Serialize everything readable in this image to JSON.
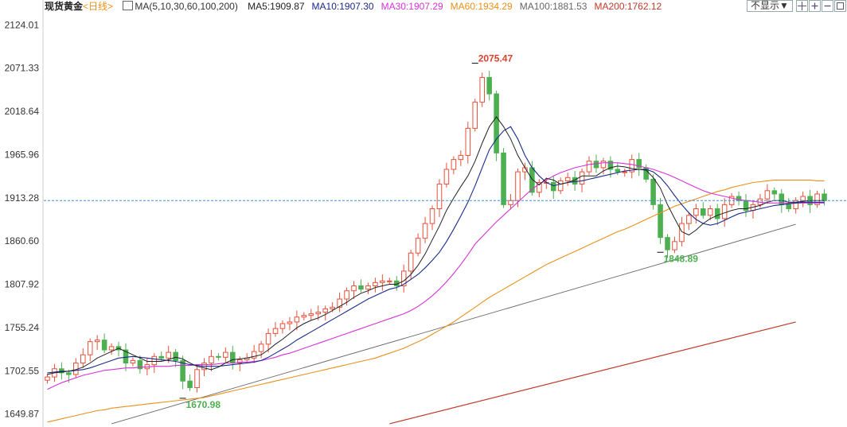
{
  "header": {
    "instrument": "现货黄金",
    "period": "<日线>",
    "ma_spec": "MA(5,10,30,60,100,200)",
    "ma_readouts": [
      {
        "text": "MA5:1909.87",
        "color": "#222222"
      },
      {
        "text": "MA10:1907.30",
        "color": "#1a2a8a"
      },
      {
        "text": "MA30:1907.29",
        "color": "#d633d6"
      },
      {
        "text": "MA60:1934.29",
        "color": "#e8911a"
      },
      {
        "text": "MA100:1881.53",
        "color": "#666666"
      },
      {
        "text": "MA200:1762.12",
        "color": "#c0392b"
      }
    ],
    "dropdown_label": "不显示▼"
  },
  "colors": {
    "up": "#e8503a",
    "down": "#4caf50",
    "ma5": "#222222",
    "ma10": "#1a2a8a",
    "ma30": "#d633d6",
    "ma60": "#e8911a",
    "ma100": "#666666",
    "ma200": "#c0392b",
    "crosshair": "#3b8fd8",
    "text_up": "#d9412f",
    "text_down": "#4caf50"
  },
  "chart_data": {
    "type": "candlestick",
    "ylim": [
      1635,
      2135
    ],
    "y_ticks": [
      "2124.01",
      "2071.33",
      "2018.64",
      "1965.96",
      "1913.28",
      "1860.60",
      "1807.92",
      "1755.24",
      "1702.55",
      "1649.87"
    ],
    "current_price_line": 1910,
    "annotations": [
      {
        "text": "2075.47",
        "candle": 60,
        "value": 2075.47,
        "kind": "high"
      },
      {
        "text": "1670.98",
        "candle": 19,
        "value": 1670.98,
        "kind": "low"
      },
      {
        "text": "1848.89",
        "candle": 86,
        "value": 1848.89,
        "kind": "low"
      }
    ],
    "closes": [
      1695,
      1705,
      1700,
      1698,
      1712,
      1722,
      1738,
      1740,
      1728,
      1732,
      1728,
      1712,
      1715,
      1705,
      1710,
      1720,
      1718,
      1725,
      1715,
      1690,
      1682,
      1704,
      1712,
      1720,
      1719,
      1725,
      1712,
      1716,
      1718,
      1726,
      1735,
      1748,
      1754,
      1760,
      1762,
      1768,
      1770,
      1772,
      1774,
      1778,
      1780,
      1790,
      1800,
      1806,
      1802,
      1806,
      1810,
      1812,
      1812,
      1806,
      1824,
      1846,
      1864,
      1882,
      1900,
      1930,
      1948,
      1960,
      1965,
      1998,
      2030,
      2060,
      2040,
      1968,
      1905,
      1910,
      1945,
      1950,
      1920,
      1932,
      1932,
      1922,
      1934,
      1938,
      1930,
      1945,
      1958,
      1950,
      1958,
      1948,
      1945,
      1945,
      1960,
      1950,
      1936,
      1905,
      1865,
      1850,
      1860,
      1882,
      1892,
      1900,
      1892,
      1900,
      1888,
      1905,
      1915,
      1910,
      1898,
      1905,
      1912,
      1922,
      1918,
      1905,
      1900,
      1910,
      1915,
      1905,
      1918,
      1910
    ],
    "ma5": [
      1698,
      1700,
      1701,
      1702,
      1704,
      1707,
      1712,
      1718,
      1722,
      1726,
      1730,
      1726,
      1722,
      1718,
      1714,
      1714,
      1714,
      1716,
      1719,
      1717,
      1712,
      1708,
      1706,
      1704,
      1707,
      1712,
      1716,
      1717,
      1718,
      1720,
      1722,
      1728,
      1735,
      1741,
      1748,
      1755,
      1760,
      1764,
      1767,
      1771,
      1776,
      1781,
      1786,
      1792,
      1797,
      1800,
      1804,
      1806,
      1808,
      1808,
      1812,
      1820,
      1831,
      1845,
      1862,
      1879,
      1898,
      1913,
      1927,
      1940,
      1958,
      1980,
      2000,
      2012,
      2000,
      1985,
      1965,
      1950,
      1936,
      1929,
      1937,
      1935,
      1930,
      1932,
      1935,
      1940,
      1940,
      1940,
      1946,
      1950,
      1952,
      1951,
      1949,
      1948,
      1947,
      1938,
      1925,
      1905,
      1888,
      1872,
      1868,
      1874,
      1882,
      1888,
      1892,
      1895,
      1898,
      1900,
      1900,
      1902,
      1904,
      1908,
      1910,
      1910,
      1908,
      1908,
      1909,
      1910,
      1910,
      1910
    ],
    "ma10": [
      1700,
      1701,
      1702,
      1702,
      1703,
      1704,
      1706,
      1709,
      1712,
      1715,
      1718,
      1719,
      1720,
      1719,
      1718,
      1717,
      1716,
      1715,
      1714,
      1712,
      1710,
      1709,
      1708,
      1708,
      1708,
      1709,
      1710,
      1711,
      1712,
      1713,
      1715,
      1719,
      1724,
      1729,
      1734,
      1740,
      1745,
      1750,
      1755,
      1760,
      1765,
      1770,
      1775,
      1780,
      1785,
      1790,
      1794,
      1798,
      1802,
      1804,
      1808,
      1814,
      1820,
      1828,
      1837,
      1847,
      1860,
      1875,
      1891,
      1908,
      1928,
      1950,
      1972,
      1985,
      1995,
      2000,
      1985,
      1965,
      1950,
      1940,
      1932,
      1928,
      1930,
      1932,
      1933,
      1934,
      1936,
      1938,
      1940,
      1942,
      1944,
      1946,
      1947,
      1948,
      1948,
      1945,
      1938,
      1928,
      1916,
      1905,
      1895,
      1887,
      1882,
      1880,
      1882,
      1886,
      1890,
      1894,
      1896,
      1898,
      1900,
      1902,
      1904,
      1905,
      1906,
      1907,
      1908,
      1908,
      1908,
      1908
    ],
    "ma30": [
      1680,
      1684,
      1688,
      1691,
      1694,
      1697,
      1699,
      1701,
      1703,
      1704,
      1705,
      1706,
      1706,
      1707,
      1707,
      1708,
      1708,
      1708,
      1709,
      1709,
      1709,
      1710,
      1710,
      1710,
      1711,
      1712,
      1712,
      1713,
      1713,
      1714,
      1715,
      1717,
      1719,
      1722,
      1724,
      1727,
      1730,
      1733,
      1736,
      1739,
      1742,
      1745,
      1748,
      1751,
      1754,
      1757,
      1760,
      1763,
      1766,
      1769,
      1772,
      1776,
      1781,
      1787,
      1794,
      1802,
      1811,
      1821,
      1832,
      1844,
      1857,
      1866,
      1875,
      1884,
      1892,
      1900,
      1908,
      1916,
      1924,
      1930,
      1935,
      1940,
      1944,
      1947,
      1950,
      1952,
      1954,
      1955,
      1956,
      1956,
      1956,
      1955,
      1954,
      1952,
      1950,
      1948,
      1945,
      1942,
      1938,
      1934,
      1930,
      1926,
      1922,
      1919,
      1917,
      1915,
      1913,
      1911,
      1910,
      1909,
      1908,
      1907,
      1907,
      1907,
      1907,
      1907,
      1907,
      1907,
      1907,
      1907
    ],
    "ma60": [
      1640,
      1642,
      1644,
      1646,
      1648,
      1650,
      1652,
      1654,
      1655,
      1657,
      1658,
      1659,
      1660,
      1661,
      1662,
      1663,
      1664,
      1665,
      1666,
      1667,
      1668,
      1669,
      1670,
      1672,
      1674,
      1676,
      1678,
      1680,
      1682,
      1684,
      1686,
      1688,
      1690,
      1692,
      1694,
      1696,
      1698,
      1700,
      1702,
      1704,
      1706,
      1708,
      1710,
      1712,
      1714,
      1716,
      1718,
      1721,
      1724,
      1727,
      1730,
      1734,
      1738,
      1742,
      1747,
      1752,
      1757,
      1762,
      1768,
      1774,
      1780,
      1786,
      1792,
      1797,
      1802,
      1807,
      1812,
      1817,
      1822,
      1827,
      1832,
      1836,
      1840,
      1844,
      1848,
      1852,
      1856,
      1860,
      1864,
      1868,
      1872,
      1875,
      1879,
      1883,
      1887,
      1891,
      1895,
      1899,
      1903,
      1906,
      1909,
      1912,
      1915,
      1918,
      1921,
      1923,
      1926,
      1928,
      1930,
      1932,
      1933,
      1934,
      1935,
      1935,
      1935,
      1935,
      1935,
      1935,
      1934,
      1934
    ],
    "ma100_x": [
      9,
      105
    ],
    "ma100": [
      1638,
      1881
    ],
    "ma200_x": [
      48,
      105
    ],
    "ma200": [
      1638,
      1762
    ]
  }
}
